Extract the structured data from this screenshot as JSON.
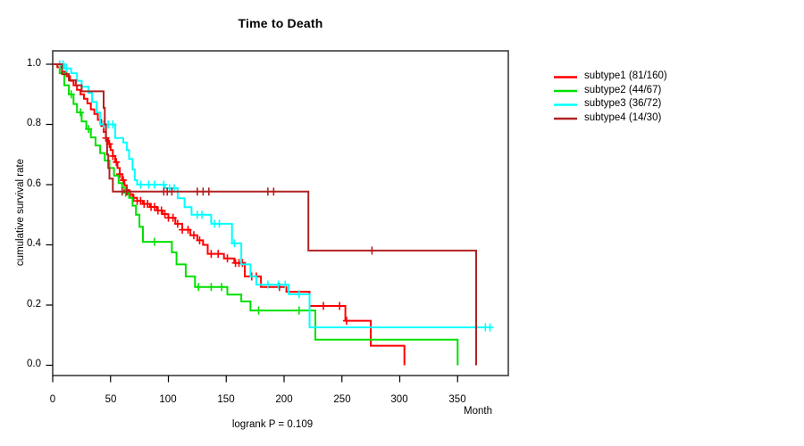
{
  "chart_data": {
    "type": "line",
    "variant": "kaplan_meier_step_plot",
    "title": "Time to Death",
    "xlabel": "Month",
    "ylabel": "cumulative survival rate",
    "annotation": "logrank P = 0.109",
    "xlim": [
      0,
      394
    ],
    "ylim": [
      0,
      1
    ],
    "grid": false,
    "legend_position": "right-outside",
    "xticks": [
      0,
      50,
      100,
      150,
      200,
      250,
      300,
      350
    ],
    "xtick_labels": [
      "0",
      "50",
      "100",
      "150",
      "200",
      "250",
      "300",
      "350"
    ],
    "yticks": [
      0,
      0.2,
      0.4,
      0.6,
      0.8,
      1.0
    ],
    "ytick_labels": [
      "0.0",
      "0.2",
      "0.4",
      "0.6",
      "0.8",
      "1.0"
    ],
    "series": [
      {
        "name": "subtype1 (81/160)",
        "label": "subtype1",
        "events": 81,
        "total": 160,
        "color": "#FF0000",
        "steps": [
          [
            0,
            1.0
          ],
          [
            4,
            0.99
          ],
          [
            8,
            0.975
          ],
          [
            12,
            0.96
          ],
          [
            15,
            0.945
          ],
          [
            18,
            0.93
          ],
          [
            21,
            0.915
          ],
          [
            24,
            0.9
          ],
          [
            27,
            0.885
          ],
          [
            30,
            0.87
          ],
          [
            33,
            0.85
          ],
          [
            36,
            0.835
          ],
          [
            39,
            0.815
          ],
          [
            42,
            0.795
          ],
          [
            44,
            0.775
          ],
          [
            46,
            0.755
          ],
          [
            48,
            0.735
          ],
          [
            50,
            0.715
          ],
          [
            52,
            0.695
          ],
          [
            54,
            0.675
          ],
          [
            56,
            0.655
          ],
          [
            58,
            0.635
          ],
          [
            60,
            0.615
          ],
          [
            62,
            0.598
          ],
          [
            64,
            0.582
          ],
          [
            66,
            0.568
          ],
          [
            69,
            0.556
          ],
          [
            73,
            0.546
          ],
          [
            78,
            0.536
          ],
          [
            84,
            0.526
          ],
          [
            90,
            0.514
          ],
          [
            95,
            0.502
          ],
          [
            100,
            0.49
          ],
          [
            106,
            0.47
          ],
          [
            112,
            0.45
          ],
          [
            119,
            0.432
          ],
          [
            125,
            0.415
          ],
          [
            130,
            0.4
          ],
          [
            134,
            0.37
          ],
          [
            148,
            0.355
          ],
          [
            157,
            0.34
          ],
          [
            166,
            0.295
          ],
          [
            180,
            0.26
          ],
          [
            202,
            0.244
          ],
          [
            222,
            0.197
          ],
          [
            253,
            0.148
          ],
          [
            275,
            0.065
          ],
          [
            304,
            0.0
          ]
        ],
        "censor_times": [
          46,
          49,
          52,
          55,
          58,
          61,
          64,
          67,
          70,
          73,
          76,
          79,
          82,
          85,
          88,
          91,
          94,
          97,
          100,
          104,
          108,
          112,
          117,
          122,
          127,
          137,
          143,
          151,
          158,
          161,
          164,
          172,
          176,
          196,
          234,
          248,
          254
        ]
      },
      {
        "name": "subtype2 (44/67)",
        "label": "subtype2",
        "events": 44,
        "total": 67,
        "color": "#00E000",
        "steps": [
          [
            0,
            1.0
          ],
          [
            6,
            0.97
          ],
          [
            10,
            0.93
          ],
          [
            14,
            0.9
          ],
          [
            18,
            0.868
          ],
          [
            21,
            0.84
          ],
          [
            25,
            0.81
          ],
          [
            29,
            0.785
          ],
          [
            33,
            0.757
          ],
          [
            37,
            0.73
          ],
          [
            41,
            0.705
          ],
          [
            45,
            0.68
          ],
          [
            49,
            0.655
          ],
          [
            53,
            0.63
          ],
          [
            57,
            0.605
          ],
          [
            60,
            0.59
          ],
          [
            63,
            0.573
          ],
          [
            66,
            0.556
          ],
          [
            69,
            0.53
          ],
          [
            72,
            0.5
          ],
          [
            75,
            0.46
          ],
          [
            78,
            0.41
          ],
          [
            103,
            0.375
          ],
          [
            107,
            0.335
          ],
          [
            115,
            0.295
          ],
          [
            123,
            0.26
          ],
          [
            151,
            0.235
          ],
          [
            163,
            0.212
          ],
          [
            171,
            0.182
          ],
          [
            227,
            0.085
          ],
          [
            350,
            0.0
          ]
        ],
        "censor_times": [
          16,
          24,
          31,
          63,
          88,
          126,
          137,
          146,
          178,
          213
        ]
      },
      {
        "name": "subtype3 (36/72)",
        "label": "subtype3",
        "events": 36,
        "total": 72,
        "color": "#00FFFF",
        "steps": [
          [
            0,
            1.0
          ],
          [
            10,
            0.986
          ],
          [
            16,
            0.97
          ],
          [
            21,
            0.945
          ],
          [
            25,
            0.925
          ],
          [
            31,
            0.905
          ],
          [
            34,
            0.875
          ],
          [
            38,
            0.84
          ],
          [
            41,
            0.8
          ],
          [
            54,
            0.755
          ],
          [
            61,
            0.74
          ],
          [
            64,
            0.715
          ],
          [
            66,
            0.685
          ],
          [
            69,
            0.65
          ],
          [
            71,
            0.615
          ],
          [
            73,
            0.6
          ],
          [
            97,
            0.588
          ],
          [
            108,
            0.555
          ],
          [
            114,
            0.525
          ],
          [
            120,
            0.5
          ],
          [
            137,
            0.47
          ],
          [
            155,
            0.405
          ],
          [
            163,
            0.335
          ],
          [
            171,
            0.295
          ],
          [
            176,
            0.268
          ],
          [
            204,
            0.236
          ],
          [
            222,
            0.126
          ],
          [
            379,
            0.126
          ]
        ],
        "censor_times": [
          6,
          9,
          12,
          44,
          48,
          52,
          76,
          83,
          88,
          96,
          101,
          105,
          125,
          129,
          140,
          144,
          157,
          186,
          195,
          201,
          213,
          374,
          378
        ]
      },
      {
        "name": "subtype4 (14/30)",
        "label": "subtype4",
        "events": 14,
        "total": 30,
        "color": "#B22222",
        "steps": [
          [
            0,
            1.0
          ],
          [
            8,
            0.967
          ],
          [
            14,
            0.947
          ],
          [
            20,
            0.93
          ],
          [
            25,
            0.91
          ],
          [
            44,
            0.855
          ],
          [
            45,
            0.8
          ],
          [
            46,
            0.75
          ],
          [
            47,
            0.7
          ],
          [
            48,
            0.655
          ],
          [
            49,
            0.62
          ],
          [
            52,
            0.577
          ],
          [
            221,
            0.381
          ],
          [
            366,
            0.0
          ]
        ],
        "censor_times": [
          60,
          64,
          96,
          99,
          103,
          125,
          130,
          135,
          186,
          191,
          276
        ]
      }
    ]
  }
}
